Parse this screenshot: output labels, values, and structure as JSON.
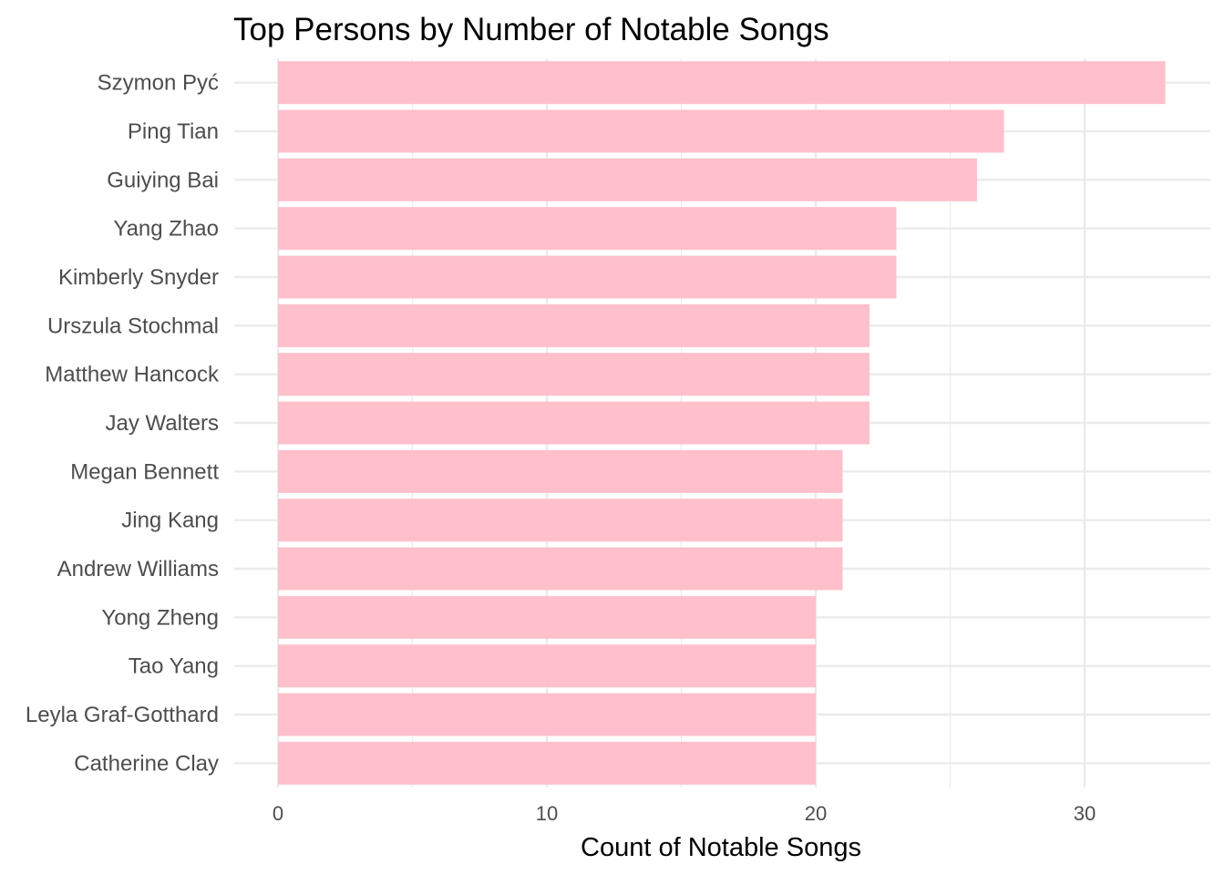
{
  "chart_data": {
    "type": "bar",
    "orientation": "horizontal",
    "title": "Top Persons by Number of Notable Songs",
    "xlabel": "Count of Notable Songs",
    "ylabel": "",
    "categories": [
      "Szymon Pyć",
      "Ping Tian",
      "Guiying Bai",
      "Yang Zhao",
      "Kimberly Snyder",
      "Urszula Stochmal",
      "Matthew Hancock",
      "Jay Walters",
      "Megan Bennett",
      "Jing Kang",
      "Andrew Williams",
      "Yong Zheng",
      "Tao Yang",
      "Leyla Graf-Gotthard",
      "Catherine Clay"
    ],
    "values": [
      33,
      27,
      26,
      23,
      23,
      22,
      22,
      22,
      21,
      21,
      21,
      20,
      20,
      20,
      20
    ],
    "x_ticks": [
      "0",
      "10",
      "20",
      "30"
    ],
    "xlim": [
      0,
      34.65
    ],
    "bar_color": "#FFC0CB",
    "grid": true,
    "grid_color": "#EBEBEB",
    "legend": "none"
  }
}
